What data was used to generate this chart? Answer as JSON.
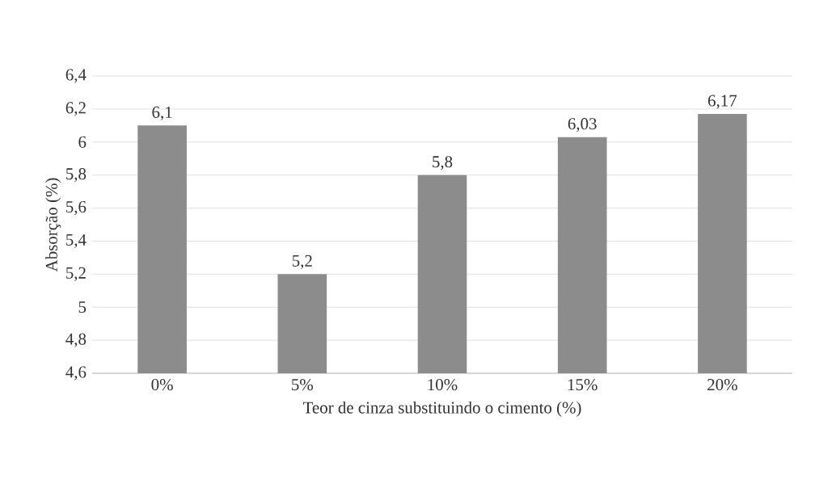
{
  "chart_data": {
    "type": "bar",
    "xlabel": "Teor de cinza substituindo o cimento (%)",
    "ylabel": "Absorção (%)",
    "categories": [
      "0%",
      "5%",
      "10%",
      "15%",
      "20%"
    ],
    "values": [
      6.1,
      5.2,
      5.8,
      6.03,
      6.17
    ],
    "value_labels": [
      "6,1",
      "5,2",
      "5,8",
      "6,03",
      "6,17"
    ],
    "color": "#8c8c8c",
    "ylim": [
      4.6,
      6.4
    ],
    "yticks": [
      {
        "value": 4.6,
        "label": "4,6"
      },
      {
        "value": 4.8,
        "label": "4,8"
      },
      {
        "value": 5.0,
        "label": "5"
      },
      {
        "value": 5.2,
        "label": "5,2"
      },
      {
        "value": 5.4,
        "label": "5,4"
      },
      {
        "value": 5.6,
        "label": "5,6"
      },
      {
        "value": 5.8,
        "label": "5,8"
      },
      {
        "value": 6.0,
        "label": "6"
      },
      {
        "value": 6.2,
        "label": "6,2"
      },
      {
        "value": 6.4,
        "label": "6,4"
      }
    ],
    "grid": "y"
  }
}
